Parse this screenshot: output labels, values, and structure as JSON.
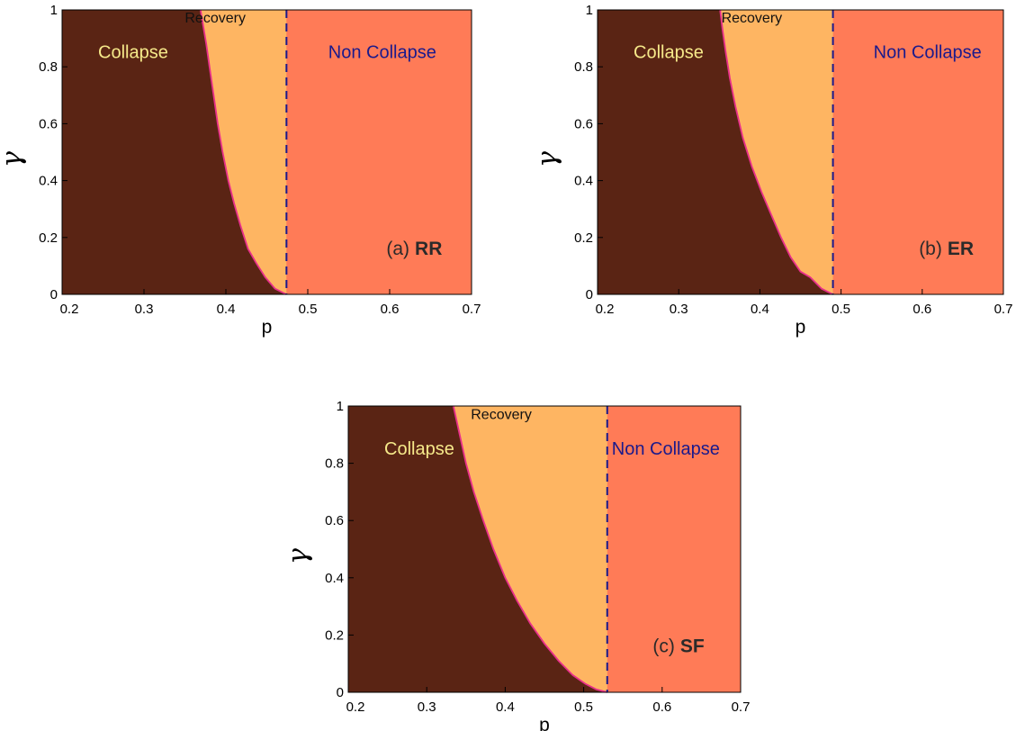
{
  "colors": {
    "collapse": "#5a2414",
    "recovery": "#feb562",
    "non_collapse": "#ff7b57",
    "boundary_curve": "#e8308a",
    "threshold_line": "#1a1a8c",
    "collapse_text": "#f6e98a",
    "recovery_text": "#111111",
    "non_collapse_text": "#1a1a8c"
  },
  "chart_data": [
    {
      "type": "area",
      "panel_tag": "(a)",
      "panel_name": "RR",
      "xlabel": "p",
      "ylabel": "γ",
      "xlim": [
        0.2,
        0.7
      ],
      "ylim": [
        0,
        1
      ],
      "xticks": [
        "0.2",
        "0.3",
        "0.4",
        "0.5",
        "0.6",
        "0.7"
      ],
      "yticks": [
        "0",
        "0.2",
        "0.4",
        "0.6",
        "0.8",
        "1"
      ],
      "regions": {
        "collapse": "Collapse",
        "recovery": "Recovery",
        "non_collapse": "Non Collapse"
      },
      "threshold_p": 0.474,
      "boundary": {
        "x": [
          0.369,
          0.372,
          0.376,
          0.38,
          0.385,
          0.39,
          0.396,
          0.403,
          0.41,
          0.418,
          0.427,
          0.437,
          0.448,
          0.46,
          0.474
        ],
        "y": [
          1.0,
          0.95,
          0.88,
          0.8,
          0.7,
          0.6,
          0.5,
          0.4,
          0.32,
          0.24,
          0.16,
          0.11,
          0.06,
          0.02,
          0.0
        ]
      }
    },
    {
      "type": "area",
      "panel_tag": "(b)",
      "panel_name": "ER",
      "xlabel": "p",
      "ylabel": "γ",
      "xlim": [
        0.2,
        0.7
      ],
      "ylim": [
        0,
        1
      ],
      "xticks": [
        "0.2",
        "0.3",
        "0.4",
        "0.5",
        "0.6",
        "0.7"
      ],
      "yticks": [
        "0",
        "0.2",
        "0.4",
        "0.6",
        "0.8",
        "1"
      ],
      "regions": {
        "collapse": "Collapse",
        "recovery": "Recovery",
        "non_collapse": "Non Collapse"
      },
      "threshold_p": 0.49,
      "boundary": {
        "x": [
          0.351,
          0.354,
          0.358,
          0.363,
          0.37,
          0.379,
          0.39,
          0.402,
          0.414,
          0.426,
          0.438,
          0.45,
          0.462,
          0.476,
          0.49
        ],
        "y": [
          1.0,
          0.93,
          0.85,
          0.76,
          0.66,
          0.55,
          0.45,
          0.36,
          0.28,
          0.2,
          0.13,
          0.08,
          0.06,
          0.02,
          0.0
        ]
      }
    },
    {
      "type": "area",
      "panel_tag": "(c)",
      "panel_name": "SF",
      "xlabel": "p",
      "ylabel": "γ",
      "xlim": [
        0.2,
        0.7
      ],
      "ylim": [
        0,
        1
      ],
      "xticks": [
        "0.2",
        "0.3",
        "0.4",
        "0.5",
        "0.6",
        "0.7"
      ],
      "yticks": [
        "0",
        "0.2",
        "0.4",
        "0.6",
        "0.8",
        "1"
      ],
      "regions": {
        "collapse": "Collapse",
        "recovery": "Recovery",
        "non_collapse": "Non Collapse"
      },
      "threshold_p": 0.53,
      "boundary": {
        "x": [
          0.334,
          0.342,
          0.35,
          0.36,
          0.372,
          0.385,
          0.4,
          0.415,
          0.432,
          0.45,
          0.468,
          0.486,
          0.502,
          0.516,
          0.53
        ],
        "y": [
          1.0,
          0.9,
          0.8,
          0.7,
          0.6,
          0.5,
          0.4,
          0.32,
          0.24,
          0.17,
          0.11,
          0.06,
          0.03,
          0.01,
          0.0
        ]
      }
    }
  ]
}
